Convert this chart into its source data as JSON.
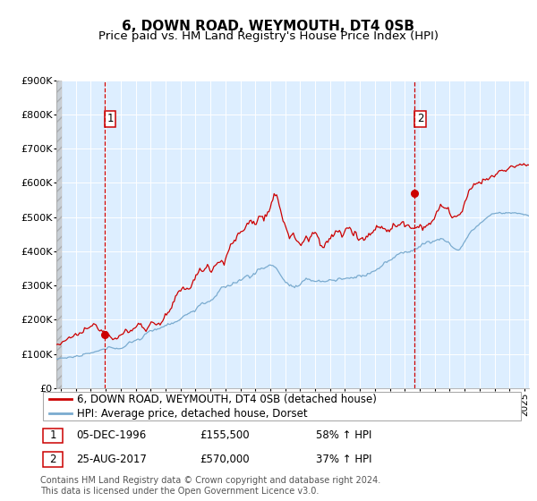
{
  "title": "6, DOWN ROAD, WEYMOUTH, DT4 0SB",
  "subtitle": "Price paid vs. HM Land Registry's House Price Index (HPI)",
  "ylim": [
    0,
    900000
  ],
  "yticks": [
    0,
    100000,
    200000,
    300000,
    400000,
    500000,
    600000,
    700000,
    800000,
    900000
  ],
  "ytick_labels": [
    "£0",
    "£100K",
    "£200K",
    "£300K",
    "£400K",
    "£500K",
    "£600K",
    "£700K",
    "£800K",
    "£900K"
  ],
  "xlim_start": 1993.7,
  "xlim_end": 2025.3,
  "sale1_x": 1996.92,
  "sale1_y": 155500,
  "sale2_x": 2017.65,
  "sale2_y": 570000,
  "sale1_date": "05-DEC-1996",
  "sale1_price": "£155,500",
  "sale1_hpi": "58% ↑ HPI",
  "sale2_date": "25-AUG-2017",
  "sale2_price": "£570,000",
  "sale2_hpi": "37% ↑ HPI",
  "red_line_color": "#cc0000",
  "blue_line_color": "#7aabcf",
  "marker_color": "#cc0000",
  "dashed_line_color": "#cc0000",
  "chart_bg_color": "#ddeeff",
  "legend_entry1": "6, DOWN ROAD, WEYMOUTH, DT4 0SB (detached house)",
  "legend_entry2": "HPI: Average price, detached house, Dorset",
  "footer": "Contains HM Land Registry data © Crown copyright and database right 2024.\nThis data is licensed under the Open Government Licence v3.0.",
  "title_fontsize": 11,
  "subtitle_fontsize": 9.5,
  "tick_fontsize": 8,
  "legend_fontsize": 8.5,
  "footer_fontsize": 7
}
